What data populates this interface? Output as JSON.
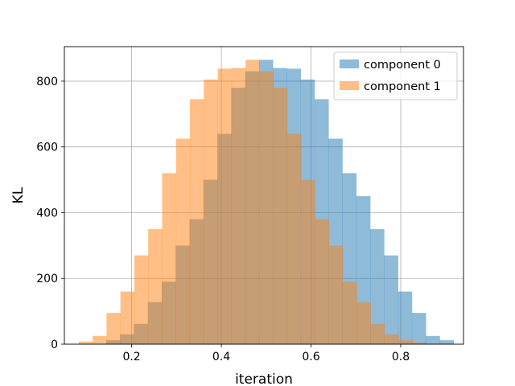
{
  "chart_data": {
    "type": "histogram",
    "xlabel": "iteration",
    "ylabel": "KL",
    "xlim": [
      0.05,
      0.94
    ],
    "ylim": [
      0,
      905
    ],
    "xticks": [
      0.2,
      0.4,
      0.6,
      0.8
    ],
    "xtick_labels": [
      "0.2",
      "0.4",
      "0.6",
      "0.8"
    ],
    "yticks": [
      0,
      200,
      400,
      600,
      800
    ],
    "ytick_labels": [
      "0",
      "200",
      "400",
      "600",
      "800"
    ],
    "grid": true,
    "legend_position": "top-right",
    "series": [
      {
        "name": "component 0",
        "color": "#1f77b4",
        "alpha": 0.5,
        "bin_edges": [
          0.143,
          0.174,
          0.205,
          0.236,
          0.267,
          0.298,
          0.329,
          0.36,
          0.391,
          0.422,
          0.453,
          0.484,
          0.515,
          0.546,
          0.577,
          0.608,
          0.639,
          0.67,
          0.701,
          0.732,
          0.763,
          0.794,
          0.825,
          0.856,
          0.887,
          0.918
        ],
        "values": [
          12,
          30,
          62,
          128,
          190,
          300,
          380,
          500,
          640,
          780,
          830,
          865,
          840,
          838,
          805,
          745,
          625,
          520,
          450,
          350,
          270,
          160,
          95,
          25,
          12
        ]
      },
      {
        "name": "component 1",
        "color": "#ff7f0e",
        "alpha": 0.5,
        "bin_edges": [
          0.082,
          0.113,
          0.144,
          0.175,
          0.206,
          0.237,
          0.268,
          0.299,
          0.33,
          0.361,
          0.392,
          0.423,
          0.454,
          0.485,
          0.516,
          0.547,
          0.578,
          0.609,
          0.64,
          0.671,
          0.702,
          0.733,
          0.764,
          0.795,
          0.826,
          0.857
        ],
        "values": [
          8,
          25,
          95,
          160,
          270,
          350,
          520,
          625,
          745,
          805,
          838,
          840,
          865,
          830,
          780,
          640,
          500,
          380,
          300,
          190,
          128,
          62,
          30,
          12,
          5
        ]
      }
    ]
  }
}
